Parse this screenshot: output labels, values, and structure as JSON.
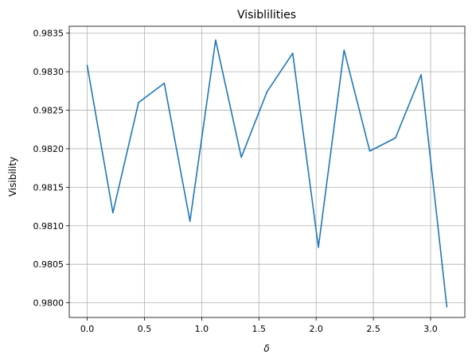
{
  "chart_data": {
    "type": "line",
    "title": "Visiblilities",
    "xlabel": "δ",
    "ylabel": "Visibility",
    "xlim": [
      -0.157,
      3.299
    ],
    "ylim": [
      0.97981,
      0.98359
    ],
    "grid": true,
    "xticks": [
      0.0,
      0.5,
      1.0,
      1.5,
      2.0,
      2.5,
      3.0
    ],
    "xtick_labels": [
      "0.0",
      "0.5",
      "1.0",
      "1.5",
      "2.0",
      "2.5",
      "3.0"
    ],
    "yticks": [
      0.98,
      0.9805,
      0.981,
      0.9815,
      0.982,
      0.9825,
      0.983,
      0.9835
    ],
    "ytick_labels": [
      "0.9800",
      "0.9805",
      "0.9810",
      "0.9815",
      "0.9820",
      "0.9825",
      "0.9830",
      "0.9835"
    ],
    "series": [
      {
        "color": "#1f77b4",
        "x": [
          0.0,
          0.2244,
          0.4488,
          0.6732,
          0.8976,
          1.122,
          1.3464,
          1.5708,
          1.7952,
          2.0196,
          2.244,
          2.4684,
          2.6928,
          2.9172,
          3.1416
        ],
        "y": [
          0.98308,
          0.98117,
          0.9826,
          0.98285,
          0.98106,
          0.98341,
          0.98189,
          0.98274,
          0.98324,
          0.98072,
          0.98328,
          0.98197,
          0.98214,
          0.98296,
          0.97995
        ]
      }
    ]
  }
}
